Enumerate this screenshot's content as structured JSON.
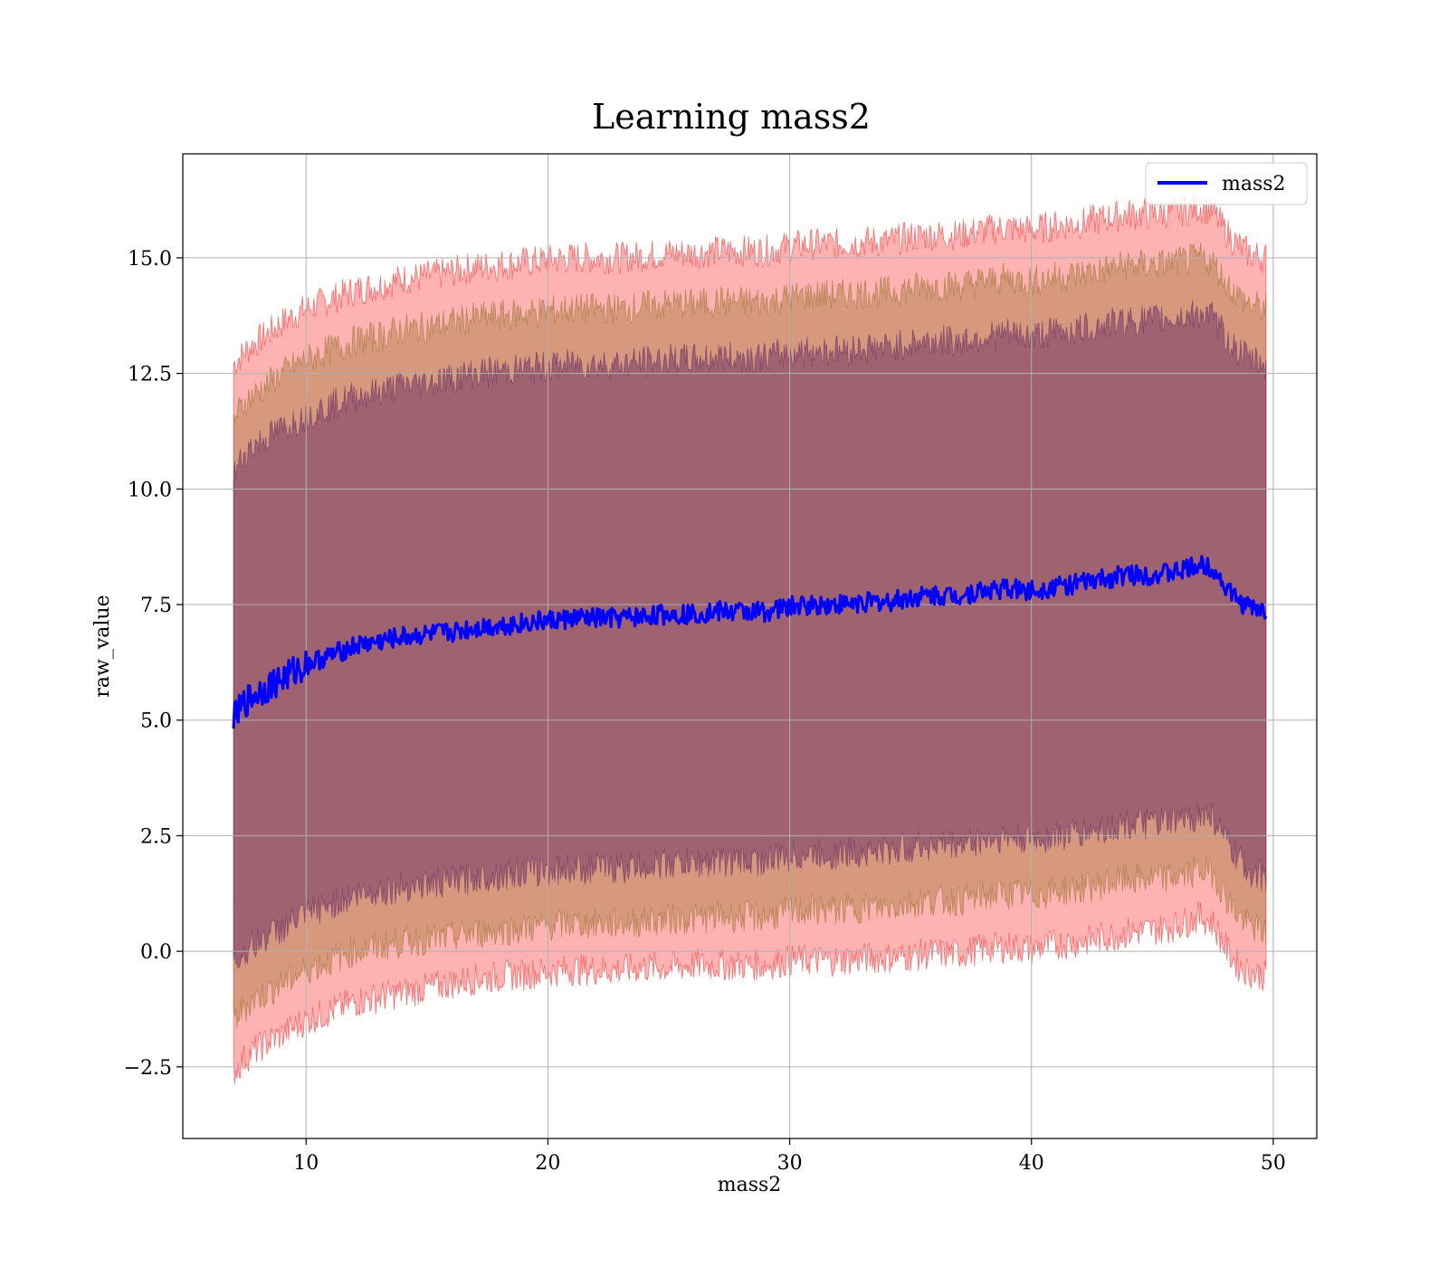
{
  "chart_data": {
    "type": "area",
    "title": "Learning mass2",
    "xlabel": "mass2",
    "ylabel": "raw_value",
    "xlim": [
      4.9,
      51.8
    ],
    "ylim": [
      -4.05,
      17.25
    ],
    "x_ticks": [
      10,
      20,
      30,
      40,
      50
    ],
    "x_tick_labels": [
      "10",
      "20",
      "30",
      "40",
      "50"
    ],
    "y_ticks": [
      -2.5,
      0.0,
      2.5,
      5.0,
      7.5,
      10.0,
      12.5,
      15.0
    ],
    "y_tick_labels": [
      "−2.5",
      "0.0",
      "2.5",
      "5.0",
      "7.5",
      "10.0",
      "12.5",
      "15.0"
    ],
    "grid": true,
    "legend_position": "top-right",
    "colors": {
      "line": "#0000ff",
      "band_outer": "#ff0000",
      "band_middle": "#8a6a1e",
      "band_inner": "#5a1e60",
      "grid": "#b0b0b0"
    },
    "series": [
      {
        "name": "mass2",
        "style": "line",
        "x": [
          7.0,
          7.5,
          8,
          9,
          10,
          11,
          12,
          13,
          14,
          15,
          16,
          17,
          18,
          19,
          20,
          21,
          22,
          23,
          24,
          25,
          26,
          27,
          28,
          29,
          30,
          31,
          32,
          33,
          34,
          35,
          36,
          37,
          38,
          39,
          40,
          41,
          42,
          43,
          44,
          45,
          46,
          47,
          47.5,
          48,
          48.5,
          49,
          49.7
        ],
        "values": [
          5.0,
          5.4,
          5.6,
          5.9,
          6.2,
          6.4,
          6.6,
          6.7,
          6.8,
          6.85,
          6.9,
          7.0,
          7.05,
          7.1,
          7.15,
          7.2,
          7.2,
          7.2,
          7.25,
          7.3,
          7.3,
          7.35,
          7.35,
          7.35,
          7.45,
          7.5,
          7.5,
          7.55,
          7.55,
          7.65,
          7.7,
          7.7,
          7.8,
          7.85,
          7.8,
          7.9,
          7.95,
          8.05,
          8.15,
          8.15,
          8.2,
          8.35,
          8.3,
          7.9,
          7.6,
          7.45,
          7.35
        ]
      }
    ],
    "bands": [
      {
        "name": "outer",
        "lower": [
          -2.6,
          -2.3,
          -2.1,
          -1.8,
          -1.5,
          -1.3,
          -1.1,
          -1.0,
          -0.9,
          -0.8,
          -0.7,
          -0.6,
          -0.55,
          -0.5,
          -0.45,
          -0.4,
          -0.4,
          -0.4,
          -0.35,
          -0.35,
          -0.3,
          -0.3,
          -0.3,
          -0.3,
          -0.2,
          -0.2,
          -0.2,
          -0.15,
          -0.15,
          -0.1,
          -0.05,
          -0.05,
          0.05,
          0.1,
          0.05,
          0.15,
          0.2,
          0.3,
          0.4,
          0.45,
          0.55,
          0.75,
          0.6,
          0.1,
          -0.3,
          -0.45,
          -0.55
        ],
        "upper": [
          12.7,
          13.0,
          13.2,
          13.6,
          13.9,
          14.1,
          14.3,
          14.4,
          14.55,
          14.6,
          14.7,
          14.8,
          14.85,
          14.9,
          14.95,
          15.0,
          15.0,
          15.0,
          15.05,
          15.1,
          15.1,
          15.15,
          15.15,
          15.15,
          15.25,
          15.3,
          15.3,
          15.35,
          15.35,
          15.45,
          15.5,
          15.5,
          15.6,
          15.65,
          15.6,
          15.7,
          15.75,
          15.85,
          15.95,
          15.95,
          16.0,
          16.1,
          16.0,
          15.6,
          15.3,
          15.1,
          15.0
        ]
      },
      {
        "name": "middle",
        "lower": [
          -1.5,
          -1.2,
          -1.0,
          -0.7,
          -0.4,
          -0.2,
          0.0,
          0.1,
          0.2,
          0.25,
          0.3,
          0.4,
          0.45,
          0.5,
          0.55,
          0.6,
          0.6,
          0.6,
          0.65,
          0.7,
          0.7,
          0.75,
          0.75,
          0.75,
          0.85,
          0.9,
          0.9,
          0.95,
          0.95,
          1.05,
          1.1,
          1.1,
          1.2,
          1.25,
          1.2,
          1.3,
          1.35,
          1.45,
          1.55,
          1.55,
          1.6,
          1.75,
          1.7,
          1.2,
          0.8,
          0.55,
          0.4
        ],
        "upper": [
          11.5,
          11.9,
          12.1,
          12.5,
          12.8,
          13.0,
          13.2,
          13.3,
          13.45,
          13.5,
          13.6,
          13.7,
          13.75,
          13.8,
          13.85,
          13.9,
          13.9,
          13.9,
          13.95,
          14.0,
          14.0,
          14.05,
          14.05,
          14.05,
          14.15,
          14.2,
          14.2,
          14.25,
          14.25,
          14.35,
          14.4,
          14.4,
          14.5,
          14.55,
          14.5,
          14.6,
          14.65,
          14.75,
          14.85,
          14.85,
          14.9,
          15.0,
          14.9,
          14.5,
          14.2,
          14.0,
          13.9
        ]
      },
      {
        "name": "inner",
        "lower": [
          -0.3,
          0.0,
          0.2,
          0.5,
          0.8,
          1.0,
          1.2,
          1.3,
          1.4,
          1.45,
          1.5,
          1.6,
          1.65,
          1.7,
          1.75,
          1.8,
          1.8,
          1.8,
          1.85,
          1.9,
          1.9,
          1.95,
          1.95,
          1.95,
          2.05,
          2.1,
          2.1,
          2.15,
          2.15,
          2.25,
          2.3,
          2.3,
          2.4,
          2.45,
          2.4,
          2.5,
          2.55,
          2.65,
          2.75,
          2.75,
          2.8,
          2.95,
          2.9,
          2.4,
          2.0,
          1.75,
          1.6
        ],
        "upper": [
          10.3,
          10.8,
          11.0,
          11.3,
          11.6,
          11.8,
          12.0,
          12.1,
          12.25,
          12.3,
          12.4,
          12.5,
          12.55,
          12.6,
          12.65,
          12.7,
          12.7,
          12.7,
          12.75,
          12.8,
          12.8,
          12.85,
          12.85,
          12.85,
          12.95,
          13.0,
          13.0,
          13.05,
          13.05,
          13.15,
          13.2,
          13.2,
          13.3,
          13.35,
          13.3,
          13.4,
          13.45,
          13.55,
          13.65,
          13.65,
          13.7,
          13.8,
          13.7,
          13.3,
          13.0,
          12.8,
          12.7
        ]
      }
    ]
  }
}
